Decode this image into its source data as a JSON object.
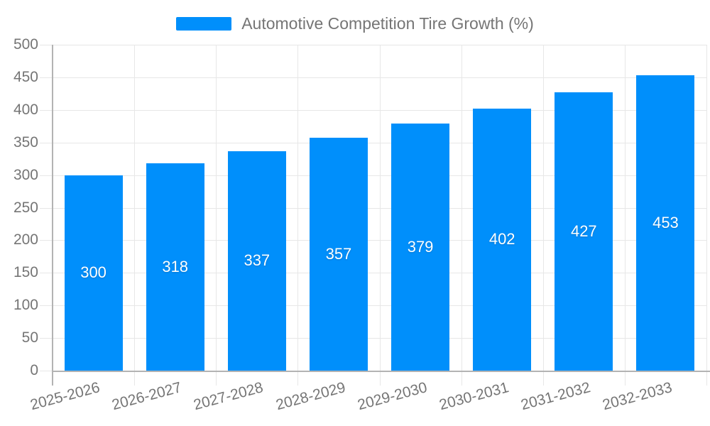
{
  "legend": {
    "label": "Automotive Competition Tire Growth (%)"
  },
  "chart_data": {
    "type": "bar",
    "title": "Automotive Competition Tire Growth (%)",
    "categories": [
      "2025-2026",
      "2026-2027",
      "2027-2028",
      "2028-2029",
      "2029-2030",
      "2030-2031",
      "2031-2032",
      "2032-2033"
    ],
    "series": [
      {
        "name": "Automotive Competition Tire Growth (%)",
        "values": [
          300,
          318,
          337,
          357,
          379,
          402,
          427,
          453
        ]
      }
    ],
    "xlabel": "",
    "ylabel": "",
    "ylim": [
      0,
      500
    ],
    "yticks": [
      0,
      50,
      100,
      150,
      200,
      250,
      300,
      350,
      400,
      450,
      500
    ],
    "grid": true,
    "legend_position": "top",
    "colors": {
      "bar": "#008FFB",
      "grid": "#e7e7e7",
      "axis": "#b3b3b3",
      "tick_label": "#757575",
      "data_label": "#ffffff",
      "legend_text": "#757575",
      "background": "#ffffff"
    }
  }
}
